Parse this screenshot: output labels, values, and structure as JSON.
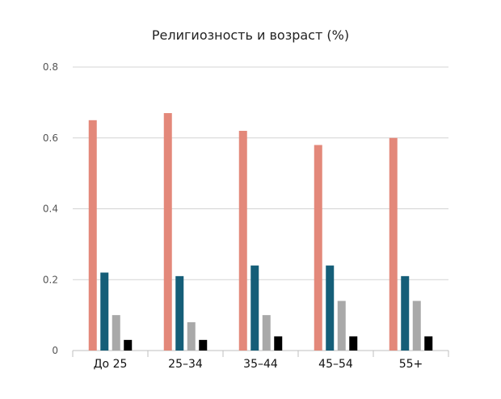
{
  "chart_data": {
    "type": "bar",
    "title": "Религиозность и возраст (%)",
    "xlabel": "",
    "ylabel": "",
    "categories": [
      "До 25",
      "25–34",
      "35–44",
      "45–54",
      "55+"
    ],
    "series": [
      {
        "values": [
          0.65,
          0.67,
          0.62,
          0.58,
          0.6
        ],
        "color": "#e3887a"
      },
      {
        "values": [
          0.22,
          0.21,
          0.24,
          0.24,
          0.21
        ],
        "color": "#155e78"
      },
      {
        "values": [
          0.1,
          0.08,
          0.1,
          0.14,
          0.14
        ],
        "color": "#a9a9a9"
      },
      {
        "values": [
          0.03,
          0.03,
          0.04,
          0.04,
          0.04
        ],
        "color": "#000000"
      }
    ],
    "ylim": [
      0,
      0.8
    ],
    "yticks": [
      0,
      0.2,
      0.4,
      0.6,
      0.8
    ],
    "ytick_labels": [
      "0",
      "0.2",
      "0.4",
      "0.6",
      "0.8"
    ],
    "grid": true,
    "legend": "none"
  }
}
